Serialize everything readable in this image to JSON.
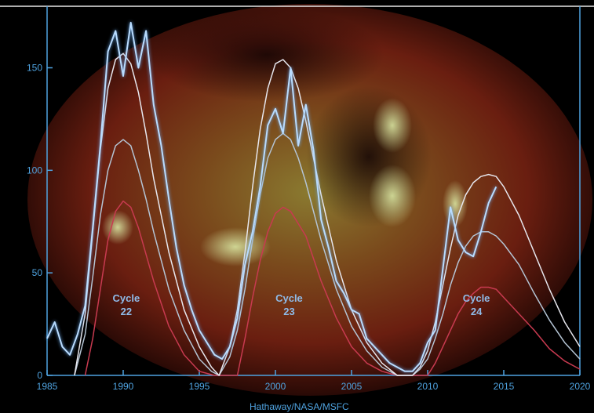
{
  "chart_data": {
    "type": "line",
    "xlim": [
      1985,
      2020
    ],
    "ylim": [
      0,
      180
    ],
    "x_ticks": [
      "1985",
      "1990",
      "1995",
      "2000",
      "2005",
      "2010",
      "2015",
      "2020"
    ],
    "y_ticks": [
      "0",
      "50",
      "100",
      "150"
    ],
    "cycle_labels": [
      {
        "line1": "Cycle",
        "line2": "22",
        "x": 1990.2,
        "y": 18
      },
      {
        "line1": "Cycle",
        "line2": "23",
        "x": 2000.9,
        "y": 18
      },
      {
        "line1": "Cycle",
        "line2": "24",
        "x": 2013.2,
        "y": 18
      }
    ],
    "credit": "Hathaway/NASA/MSFC",
    "series": [
      {
        "values": [
          [
            1985.0,
            18
          ],
          [
            1985.5,
            26
          ],
          [
            1986.0,
            14
          ],
          [
            1986.5,
            10
          ],
          [
            1987.0,
            20
          ],
          [
            1987.5,
            34
          ],
          [
            1988.0,
            72
          ],
          [
            1988.5,
            112
          ],
          [
            1989.0,
            158
          ],
          [
            1989.5,
            168
          ],
          [
            1990.0,
            146
          ],
          [
            1990.5,
            172
          ],
          [
            1991.0,
            150
          ],
          [
            1991.5,
            168
          ],
          [
            1992.0,
            132
          ],
          [
            1992.5,
            112
          ],
          [
            1993.0,
            86
          ],
          [
            1993.5,
            62
          ],
          [
            1994.0,
            44
          ],
          [
            1994.5,
            32
          ],
          [
            1995.0,
            22
          ],
          [
            1995.5,
            16
          ],
          [
            1996.0,
            10
          ],
          [
            1996.5,
            8
          ],
          [
            1997.0,
            14
          ],
          [
            1997.5,
            28
          ],
          [
            1998.0,
            54
          ],
          [
            1998.5,
            70
          ],
          [
            1999.0,
            92
          ],
          [
            1999.5,
            122
          ],
          [
            2000.0,
            130
          ],
          [
            2000.5,
            118
          ],
          [
            2001.0,
            150
          ],
          [
            2001.5,
            112
          ],
          [
            2002.0,
            132
          ],
          [
            2002.5,
            110
          ],
          [
            2003.0,
            76
          ],
          [
            2003.5,
            62
          ],
          [
            2004.0,
            46
          ],
          [
            2004.5,
            40
          ],
          [
            2005.0,
            32
          ],
          [
            2005.5,
            30
          ],
          [
            2006.0,
            18
          ],
          [
            2006.5,
            14
          ],
          [
            2007.0,
            10
          ],
          [
            2007.5,
            6
          ],
          [
            2008.0,
            4
          ],
          [
            2008.5,
            2
          ],
          [
            2009.0,
            2
          ],
          [
            2009.5,
            6
          ],
          [
            2010.0,
            16
          ],
          [
            2010.5,
            22
          ],
          [
            2011.0,
            52
          ],
          [
            2011.5,
            82
          ],
          [
            2012.0,
            66
          ],
          [
            2012.5,
            60
          ],
          [
            2013.0,
            58
          ],
          [
            2013.5,
            70
          ],
          [
            2014.0,
            84
          ],
          [
            2014.5,
            92
          ]
        ],
        "color": "#b9dcff"
      },
      {
        "values": [
          [
            1986.8,
            0
          ],
          [
            1987.5,
            30
          ],
          [
            1988.0,
            70
          ],
          [
            1988.5,
            110
          ],
          [
            1989.0,
            140
          ],
          [
            1989.5,
            154
          ],
          [
            1990.0,
            157
          ],
          [
            1990.5,
            152
          ],
          [
            1991.0,
            138
          ],
          [
            1991.5,
            118
          ],
          [
            1992.0,
            96
          ],
          [
            1993.0,
            60
          ],
          [
            1994.0,
            32
          ],
          [
            1995.0,
            14
          ],
          [
            1995.8,
            4
          ],
          [
            1996.3,
            0
          ],
          [
            1997.0,
            14
          ],
          [
            1997.5,
            32
          ],
          [
            1998.0,
            60
          ],
          [
            1998.5,
            92
          ],
          [
            1999.0,
            120
          ],
          [
            1999.5,
            140
          ],
          [
            2000.0,
            152
          ],
          [
            2000.5,
            154
          ],
          [
            2001.0,
            150
          ],
          [
            2001.5,
            140
          ],
          [
            2002.0,
            124
          ],
          [
            2003.0,
            88
          ],
          [
            2004.0,
            56
          ],
          [
            2005.0,
            32
          ],
          [
            2006.0,
            16
          ],
          [
            2007.0,
            6
          ],
          [
            2008.0,
            0
          ],
          [
            2009.0,
            0
          ],
          [
            2009.5,
            4
          ],
          [
            2010.0,
            12
          ],
          [
            2010.5,
            26
          ],
          [
            2011.0,
            44
          ],
          [
            2011.5,
            62
          ],
          [
            2012.0,
            78
          ],
          [
            2012.5,
            88
          ],
          [
            2013.0,
            94
          ],
          [
            2013.5,
            97
          ],
          [
            2014.0,
            98
          ],
          [
            2014.5,
            97
          ],
          [
            2015.0,
            92
          ],
          [
            2016.0,
            78
          ],
          [
            2017.0,
            60
          ],
          [
            2018.0,
            42
          ],
          [
            2019.0,
            26
          ],
          [
            2020.0,
            14
          ]
        ],
        "color": "#e7e7ee"
      },
      {
        "values": [
          [
            1986.8,
            0
          ],
          [
            1987.5,
            20
          ],
          [
            1988.0,
            48
          ],
          [
            1988.5,
            78
          ],
          [
            1989.0,
            100
          ],
          [
            1989.5,
            112
          ],
          [
            1990.0,
            115
          ],
          [
            1990.5,
            112
          ],
          [
            1991.0,
            100
          ],
          [
            1991.5,
            86
          ],
          [
            1992.0,
            70
          ],
          [
            1993.0,
            42
          ],
          [
            1994.0,
            22
          ],
          [
            1995.0,
            8
          ],
          [
            1995.8,
            2
          ],
          [
            1996.3,
            0
          ],
          [
            1997.0,
            9
          ],
          [
            1997.5,
            22
          ],
          [
            1998.0,
            42
          ],
          [
            1998.5,
            66
          ],
          [
            1999.0,
            88
          ],
          [
            1999.5,
            106
          ],
          [
            2000.0,
            115
          ],
          [
            2000.5,
            118
          ],
          [
            2001.0,
            115
          ],
          [
            2001.5,
            106
          ],
          [
            2002.0,
            94
          ],
          [
            2003.0,
            66
          ],
          [
            2004.0,
            42
          ],
          [
            2005.0,
            24
          ],
          [
            2006.0,
            12
          ],
          [
            2007.0,
            4
          ],
          [
            2008.0,
            0
          ],
          [
            2009.0,
            0
          ],
          [
            2009.5,
            3
          ],
          [
            2010.0,
            8
          ],
          [
            2010.5,
            18
          ],
          [
            2011.0,
            30
          ],
          [
            2011.5,
            44
          ],
          [
            2012.0,
            55
          ],
          [
            2012.5,
            63
          ],
          [
            2013.0,
            68
          ],
          [
            2013.5,
            70
          ],
          [
            2014.0,
            70
          ],
          [
            2014.5,
            68
          ],
          [
            2015.0,
            64
          ],
          [
            2016.0,
            54
          ],
          [
            2017.0,
            40
          ],
          [
            2018.0,
            27
          ],
          [
            2019.0,
            16
          ],
          [
            2020.0,
            8
          ]
        ],
        "color": "#b4c4d4"
      },
      {
        "values": [
          [
            1987.5,
            0
          ],
          [
            1988.0,
            18
          ],
          [
            1988.5,
            42
          ],
          [
            1989.0,
            66
          ],
          [
            1989.5,
            80
          ],
          [
            1990.0,
            85
          ],
          [
            1990.5,
            82
          ],
          [
            1991.0,
            72
          ],
          [
            1992.0,
            46
          ],
          [
            1993.0,
            24
          ],
          [
            1994.0,
            10
          ],
          [
            1995.0,
            2
          ],
          [
            1996.0,
            0
          ],
          [
            1997.5,
            0
          ],
          [
            1998.0,
            18
          ],
          [
            1998.5,
            38
          ],
          [
            1999.0,
            56
          ],
          [
            1999.5,
            70
          ],
          [
            2000.0,
            79
          ],
          [
            2000.5,
            82
          ],
          [
            2001.0,
            80
          ],
          [
            2002.0,
            68
          ],
          [
            2003.0,
            46
          ],
          [
            2004.0,
            28
          ],
          [
            2005.0,
            14
          ],
          [
            2006.0,
            6
          ],
          [
            2007.0,
            2
          ],
          [
            2008.0,
            0
          ],
          [
            2010.0,
            0
          ],
          [
            2010.5,
            6
          ],
          [
            2011.0,
            14
          ],
          [
            2011.5,
            22
          ],
          [
            2012.0,
            30
          ],
          [
            2012.5,
            36
          ],
          [
            2013.0,
            40
          ],
          [
            2013.5,
            43
          ],
          [
            2014.0,
            43
          ],
          [
            2014.5,
            42
          ],
          [
            2015.0,
            38
          ],
          [
            2016.0,
            30
          ],
          [
            2017.0,
            22
          ],
          [
            2018.0,
            13
          ],
          [
            2019.0,
            7
          ],
          [
            2020.0,
            3
          ]
        ],
        "color": "#c83a50"
      }
    ],
    "grid": false,
    "colors": {
      "axis": "#4fa3e0",
      "background": "#000000",
      "sun_glow": "#a8301a",
      "sun_core": "#c8c85a"
    }
  }
}
